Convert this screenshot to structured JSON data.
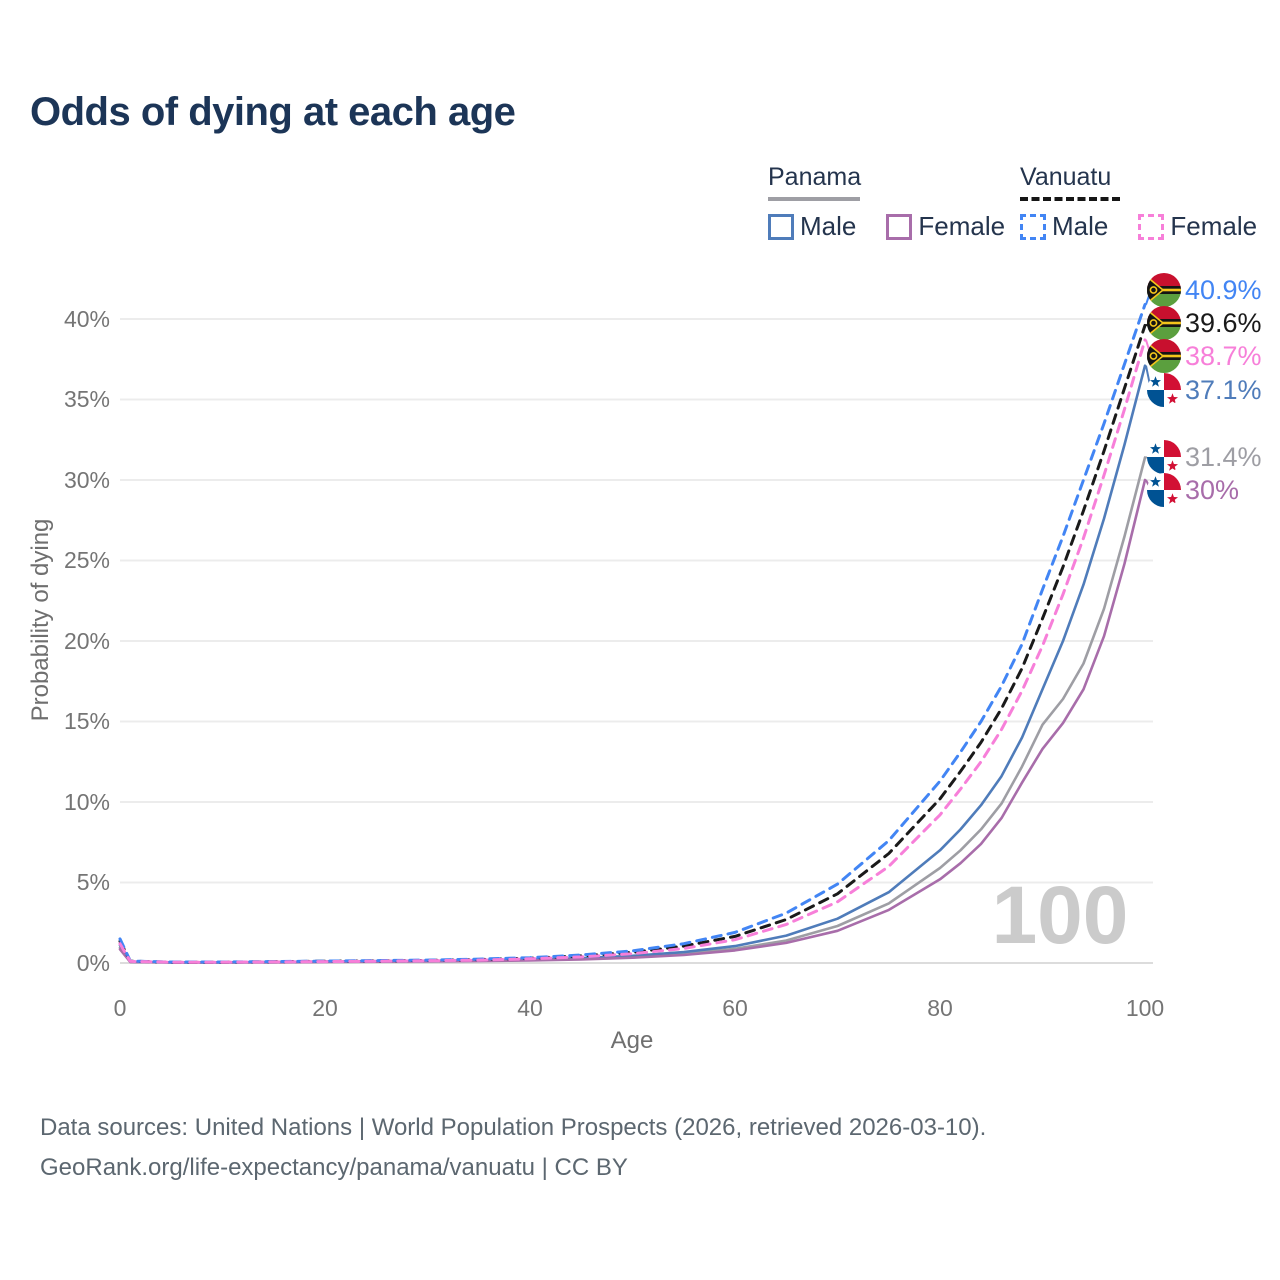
{
  "title": "Odds of dying at each age",
  "legend": {
    "panama": {
      "label": "Panama",
      "male_label": "Male",
      "female_label": "Female"
    },
    "vanuatu": {
      "label": "Vanuatu",
      "male_label": "Male",
      "female_label": "Female"
    }
  },
  "watermark": "100",
  "footer": {
    "line1": "Data sources: United Nations | World Population Prospects (2026, retrieved 2026-03-10).",
    "line2": "GeoRank.org/life-expectancy/panama/vanuatu | CC BY"
  },
  "colors": {
    "title": "#1c3557",
    "panama_male": "#4f7cba",
    "panama_total": "#9e9ea4",
    "panama_female": "#a86daa",
    "vanuatu_male": "#4285f4",
    "vanuatu_total": "#1a1a1a",
    "vanuatu_female": "#f77fd9",
    "gridline": "#ececec",
    "baseline": "#dcdcdc"
  },
  "chart_data": {
    "type": "line",
    "title": "Odds of dying at each age",
    "xlabel": "Age",
    "ylabel": "Probability of dying",
    "xlim": [
      0,
      100
    ],
    "ylim_pct": [
      0,
      40
    ],
    "grid": "horizontal-only",
    "x_tick_labels": [
      "0",
      "20",
      "40",
      "60",
      "80",
      "100"
    ],
    "y_tick_labels": [
      "0%",
      "5%",
      "10%",
      "15%",
      "20%",
      "25%",
      "30%",
      "35%",
      "40%"
    ],
    "ages": [
      0,
      1,
      5,
      10,
      15,
      20,
      25,
      30,
      35,
      40,
      45,
      50,
      55,
      60,
      65,
      70,
      75,
      80,
      82,
      84,
      86,
      88,
      90,
      92,
      94,
      96,
      98,
      100
    ],
    "series": [
      {
        "name": "Vanuatu Male",
        "country": "Vanuatu",
        "style": "dashed",
        "color": "#4285f4",
        "end_label": "40.9%",
        "values_pct": [
          1.5,
          0.12,
          0.06,
          0.06,
          0.09,
          0.12,
          0.15,
          0.18,
          0.24,
          0.33,
          0.5,
          0.75,
          1.2,
          1.9,
          3.1,
          4.9,
          7.6,
          11.3,
          13.1,
          15.0,
          17.2,
          19.8,
          23.2,
          26.5,
          30.0,
          33.5,
          37.2,
          40.9
        ]
      },
      {
        "name": "Vanuatu",
        "country": "Vanuatu",
        "style": "dashed",
        "color": "#1a1a1a",
        "end_label": "39.6%",
        "values_pct": [
          1.35,
          0.11,
          0.05,
          0.05,
          0.08,
          0.11,
          0.13,
          0.16,
          0.21,
          0.3,
          0.44,
          0.66,
          1.05,
          1.65,
          2.7,
          4.3,
          6.8,
          10.2,
          11.9,
          13.7,
          15.8,
          18.3,
          21.4,
          24.6,
          28.1,
          31.8,
          35.7,
          39.6
        ]
      },
      {
        "name": "Vanuatu Female",
        "country": "Vanuatu",
        "style": "dashed",
        "color": "#f77fd9",
        "end_label": "38.7%",
        "values_pct": [
          1.2,
          0.1,
          0.05,
          0.05,
          0.07,
          0.09,
          0.11,
          0.14,
          0.18,
          0.26,
          0.38,
          0.58,
          0.9,
          1.45,
          2.4,
          3.8,
          6.0,
          9.2,
          10.8,
          12.5,
          14.5,
          16.9,
          19.7,
          22.9,
          26.4,
          30.3,
          34.4,
          38.7
        ]
      },
      {
        "name": "Panama Male",
        "country": "Panama",
        "style": "solid",
        "color": "#4f7cba",
        "end_label": "37.1%",
        "values_pct": [
          1.1,
          0.08,
          0.03,
          0.03,
          0.06,
          0.09,
          0.11,
          0.13,
          0.16,
          0.21,
          0.3,
          0.45,
          0.68,
          1.05,
          1.7,
          2.75,
          4.4,
          7.0,
          8.3,
          9.8,
          11.6,
          14.0,
          17.0,
          20.0,
          23.5,
          27.6,
          32.2,
          37.1
        ]
      },
      {
        "name": "Panama",
        "country": "Panama",
        "style": "solid",
        "color": "#9e9ea4",
        "end_label": "31.4%",
        "values_pct": [
          0.95,
          0.07,
          0.03,
          0.03,
          0.05,
          0.08,
          0.1,
          0.12,
          0.14,
          0.18,
          0.25,
          0.38,
          0.57,
          0.88,
          1.4,
          2.3,
          3.7,
          5.9,
          7.0,
          8.3,
          9.9,
          12.2,
          14.8,
          16.4,
          18.6,
          22.0,
          26.5,
          31.4
        ]
      },
      {
        "name": "Panama Female",
        "country": "Panama",
        "style": "solid",
        "color": "#a86daa",
        "end_label": "30%",
        "values_pct": [
          0.85,
          0.06,
          0.03,
          0.03,
          0.04,
          0.06,
          0.08,
          0.1,
          0.12,
          0.16,
          0.22,
          0.33,
          0.5,
          0.78,
          1.25,
          2.0,
          3.3,
          5.2,
          6.2,
          7.4,
          9.0,
          11.2,
          13.3,
          14.9,
          17.0,
          20.3,
          24.8,
          30.0
        ]
      }
    ],
    "end_labels": [
      {
        "text": "40.9%",
        "flag": "vanuatu",
        "color": "#4285f4"
      },
      {
        "text": "39.6%",
        "flag": "vanuatu",
        "color": "#1a1a1a"
      },
      {
        "text": "38.7%",
        "flag": "vanuatu",
        "color": "#f77fd9"
      },
      {
        "text": "37.1%",
        "flag": "panama",
        "color": "#4f7cba"
      },
      {
        "text": "31.4%",
        "flag": "panama",
        "color": "#9e9ea4"
      },
      {
        "text": "30%",
        "flag": "panama",
        "color": "#a86daa"
      }
    ]
  }
}
